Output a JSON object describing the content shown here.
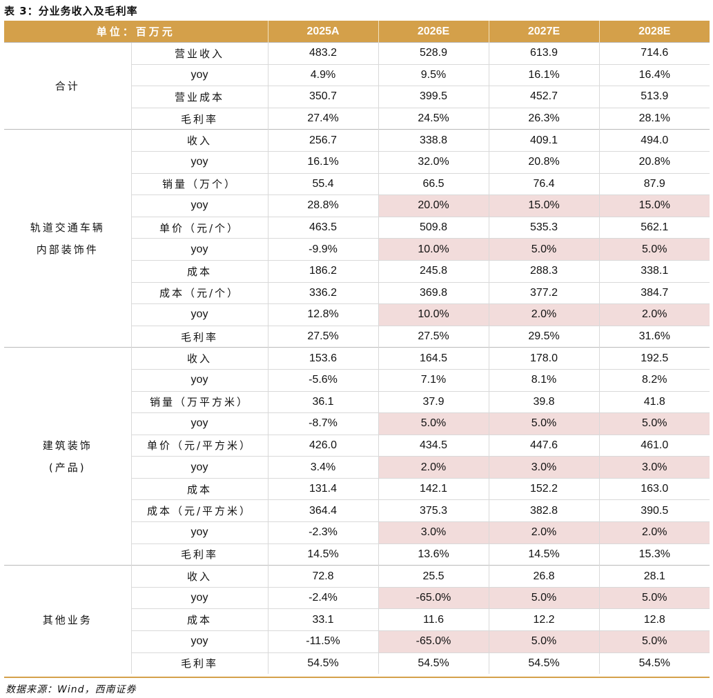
{
  "title": "表 3：分业务收入及毛利率",
  "header": {
    "unit_label": "单位：百万元",
    "years": [
      "2025A",
      "2026E",
      "2027E",
      "2028E"
    ]
  },
  "segments": [
    {
      "name": [
        "合计"
      ],
      "rows": [
        {
          "metric": "营业收入",
          "values": [
            "483.2",
            "528.9",
            "613.9",
            "714.6"
          ],
          "highlight": [
            false,
            false,
            false,
            false
          ]
        },
        {
          "metric": "yoy",
          "values": [
            "4.9%",
            "9.5%",
            "16.1%",
            "16.4%"
          ],
          "highlight": [
            false,
            false,
            false,
            false
          ]
        },
        {
          "metric": "营业成本",
          "values": [
            "350.7",
            "399.5",
            "452.7",
            "513.9"
          ],
          "highlight": [
            false,
            false,
            false,
            false
          ]
        },
        {
          "metric": "毛利率",
          "values": [
            "27.4%",
            "24.5%",
            "26.3%",
            "28.1%"
          ],
          "highlight": [
            false,
            false,
            false,
            false
          ]
        }
      ]
    },
    {
      "name": [
        "轨道交通车辆",
        "内部装饰件"
      ],
      "rows": [
        {
          "metric": "收入",
          "values": [
            "256.7",
            "338.8",
            "409.1",
            "494.0"
          ],
          "highlight": [
            false,
            false,
            false,
            false
          ]
        },
        {
          "metric": "yoy",
          "values": [
            "16.1%",
            "32.0%",
            "20.8%",
            "20.8%"
          ],
          "highlight": [
            false,
            false,
            false,
            false
          ]
        },
        {
          "metric": "销量（万个）",
          "values": [
            "55.4",
            "66.5",
            "76.4",
            "87.9"
          ],
          "highlight": [
            false,
            false,
            false,
            false
          ]
        },
        {
          "metric": "yoy",
          "values": [
            "28.8%",
            "20.0%",
            "15.0%",
            "15.0%"
          ],
          "highlight": [
            false,
            true,
            true,
            true
          ]
        },
        {
          "metric": "单价（元/个）",
          "values": [
            "463.5",
            "509.8",
            "535.3",
            "562.1"
          ],
          "highlight": [
            false,
            false,
            false,
            false
          ]
        },
        {
          "metric": "yoy",
          "values": [
            "-9.9%",
            "10.0%",
            "5.0%",
            "5.0%"
          ],
          "highlight": [
            false,
            true,
            true,
            true
          ]
        },
        {
          "metric": "成本",
          "values": [
            "186.2",
            "245.8",
            "288.3",
            "338.1"
          ],
          "highlight": [
            false,
            false,
            false,
            false
          ]
        },
        {
          "metric": "成本（元/个）",
          "values": [
            "336.2",
            "369.8",
            "377.2",
            "384.7"
          ],
          "highlight": [
            false,
            false,
            false,
            false
          ]
        },
        {
          "metric": "yoy",
          "values": [
            "12.8%",
            "10.0%",
            "2.0%",
            "2.0%"
          ],
          "highlight": [
            false,
            true,
            true,
            true
          ]
        },
        {
          "metric": "毛利率",
          "values": [
            "27.5%",
            "27.5%",
            "29.5%",
            "31.6%"
          ],
          "highlight": [
            false,
            false,
            false,
            false
          ]
        }
      ]
    },
    {
      "name": [
        "建筑装饰",
        "(产品)"
      ],
      "rows": [
        {
          "metric": "收入",
          "values": [
            "153.6",
            "164.5",
            "178.0",
            "192.5"
          ],
          "highlight": [
            false,
            false,
            false,
            false
          ]
        },
        {
          "metric": "yoy",
          "values": [
            "-5.6%",
            "7.1%",
            "8.1%",
            "8.2%"
          ],
          "highlight": [
            false,
            false,
            false,
            false
          ]
        },
        {
          "metric": "销量（万平方米）",
          "values": [
            "36.1",
            "37.9",
            "39.8",
            "41.8"
          ],
          "highlight": [
            false,
            false,
            false,
            false
          ]
        },
        {
          "metric": "yoy",
          "values": [
            "-8.7%",
            "5.0%",
            "5.0%",
            "5.0%"
          ],
          "highlight": [
            false,
            true,
            true,
            true
          ]
        },
        {
          "metric": "单价（元/平方米）",
          "values": [
            "426.0",
            "434.5",
            "447.6",
            "461.0"
          ],
          "highlight": [
            false,
            false,
            false,
            false
          ]
        },
        {
          "metric": "yoy",
          "values": [
            "3.4%",
            "2.0%",
            "3.0%",
            "3.0%"
          ],
          "highlight": [
            false,
            true,
            true,
            true
          ]
        },
        {
          "metric": "成本",
          "values": [
            "131.4",
            "142.1",
            "152.2",
            "163.0"
          ],
          "highlight": [
            false,
            false,
            false,
            false
          ]
        },
        {
          "metric": "成本（元/平方米）",
          "values": [
            "364.4",
            "375.3",
            "382.8",
            "390.5"
          ],
          "highlight": [
            false,
            false,
            false,
            false
          ]
        },
        {
          "metric": "yoy",
          "values": [
            "-2.3%",
            "3.0%",
            "2.0%",
            "2.0%"
          ],
          "highlight": [
            false,
            true,
            true,
            true
          ]
        },
        {
          "metric": "毛利率",
          "values": [
            "14.5%",
            "13.6%",
            "14.5%",
            "15.3%"
          ],
          "highlight": [
            false,
            false,
            false,
            false
          ]
        }
      ]
    },
    {
      "name": [
        "其他业务"
      ],
      "rows": [
        {
          "metric": "收入",
          "values": [
            "72.8",
            "25.5",
            "26.8",
            "28.1"
          ],
          "highlight": [
            false,
            false,
            false,
            false
          ]
        },
        {
          "metric": "yoy",
          "values": [
            "-2.4%",
            "-65.0%",
            "5.0%",
            "5.0%"
          ],
          "highlight": [
            false,
            true,
            true,
            true
          ]
        },
        {
          "metric": "成本",
          "values": [
            "33.1",
            "11.6",
            "12.2",
            "12.8"
          ],
          "highlight": [
            false,
            false,
            false,
            false
          ]
        },
        {
          "metric": "yoy",
          "values": [
            "-11.5%",
            "-65.0%",
            "5.0%",
            "5.0%"
          ],
          "highlight": [
            false,
            true,
            true,
            true
          ]
        },
        {
          "metric": "毛利率",
          "values": [
            "54.5%",
            "54.5%",
            "54.5%",
            "54.5%"
          ],
          "highlight": [
            false,
            false,
            false,
            false
          ]
        }
      ]
    }
  ],
  "colors": {
    "header_bg": "#d4a04a",
    "highlight_bg": "#f2dcdb",
    "rule": "#d4a04a"
  },
  "source": "数据来源：Wind，西南证券"
}
